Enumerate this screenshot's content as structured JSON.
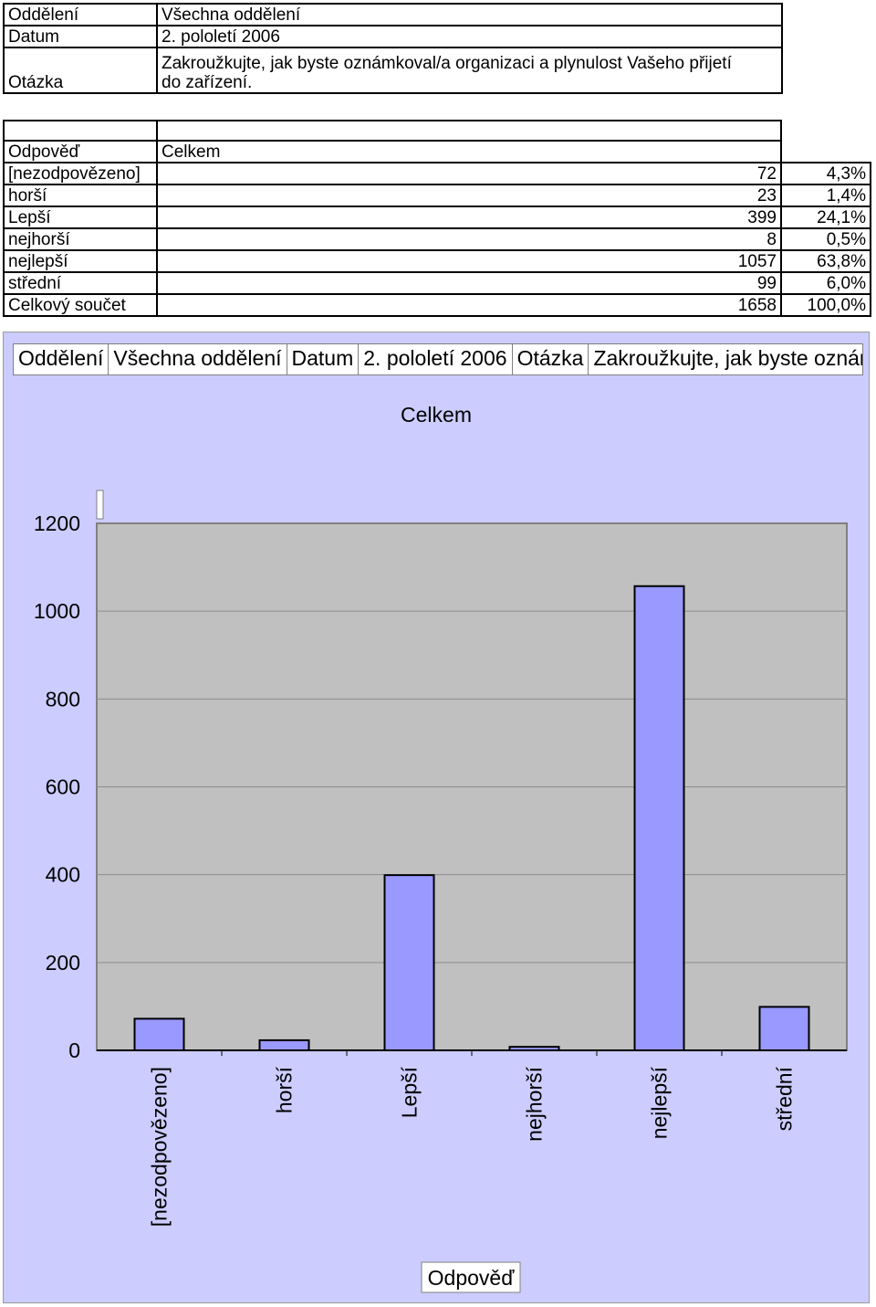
{
  "info": {
    "dept_label": "Oddělení",
    "dept_value": "Všechna oddělení",
    "date_label": "Datum",
    "date_value": "2. pololetí 2006",
    "question_label": "Otázka",
    "question_line1": "Zakroužkujte, jak byste oznámkoval/a organizaci a plynulost Vašeho přijetí",
    "question_line2": "do zařízení."
  },
  "table": {
    "col_answer": "Odpověď",
    "col_total": "Celkem",
    "rows": [
      {
        "label": "[nezodpovězeno]",
        "count": "72",
        "pct": "4,3%"
      },
      {
        "label": "horší",
        "count": "23",
        "pct": "1,4%"
      },
      {
        "label": "Lepší",
        "count": "399",
        "pct": "24,1%"
      },
      {
        "label": "nejhorší",
        "count": "8",
        "pct": "0,5%"
      },
      {
        "label": "nejlepší",
        "count": "1057",
        "pct": "63,8%"
      },
      {
        "label": "střední",
        "count": "99",
        "pct": "6,0%"
      }
    ],
    "total_label": "Celkový součet",
    "total_count": "1658",
    "total_pct": "100,0%"
  },
  "chart_header": {
    "dept_label": "Oddělení",
    "dept_value": "Všechna oddělení",
    "date_label": "Datum",
    "date_value": "2. pololetí 2006",
    "question_label": "Otázka",
    "question_value": "Zakroužkujte, jak byste oznámkoval/a organizaci a plynulost Vašeho přijetí do zařízení."
  },
  "colors": {
    "chart_background": "#ccccff",
    "plot_background": "#c0c0c0",
    "bar_fill": "#9999ff"
  },
  "chart_data": {
    "type": "bar",
    "title": "Celkem",
    "xlabel": "Odpověď",
    "ylabel": "",
    "categories": [
      "[nezodpovězeno]",
      "horší",
      "Lepší",
      "nejhorší",
      "nejlepší",
      "střední"
    ],
    "values": [
      72,
      23,
      399,
      8,
      1057,
      99
    ],
    "ylim": [
      0,
      1200
    ],
    "yticks": [
      0,
      200,
      400,
      600,
      800,
      1000,
      1200
    ],
    "grid": true,
    "legend": "none"
  }
}
